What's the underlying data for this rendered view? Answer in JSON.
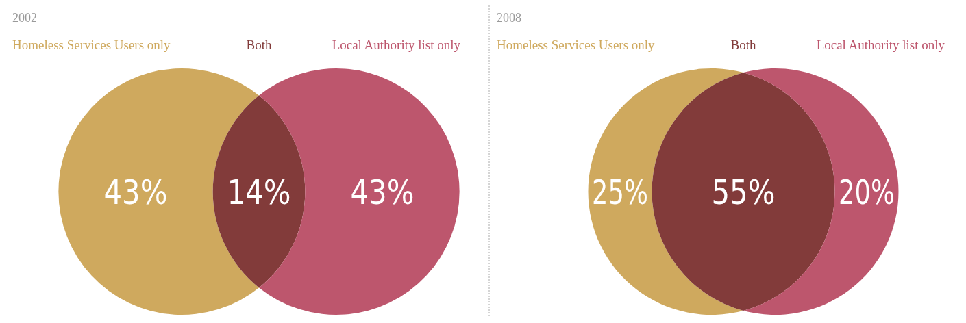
{
  "chart_data": [
    {
      "type": "other",
      "title": "2002",
      "categories": [
        "Homeless Services Users only",
        "Both",
        "Local Authority list only"
      ],
      "values": [
        43,
        14,
        43
      ],
      "value_labels": [
        "43%",
        "14%",
        "43%"
      ],
      "colors": [
        "#cfa95e",
        "#823b3a",
        "#bd566d"
      ]
    },
    {
      "type": "other",
      "title": "2008",
      "categories": [
        "Homeless Services Users only",
        "Both",
        "Local Authority list only"
      ],
      "values": [
        25,
        55,
        20
      ],
      "value_labels": [
        "25%",
        "55%",
        "20%"
      ],
      "colors": [
        "#cfa95e",
        "#823b3a",
        "#bd566d"
      ]
    }
  ]
}
